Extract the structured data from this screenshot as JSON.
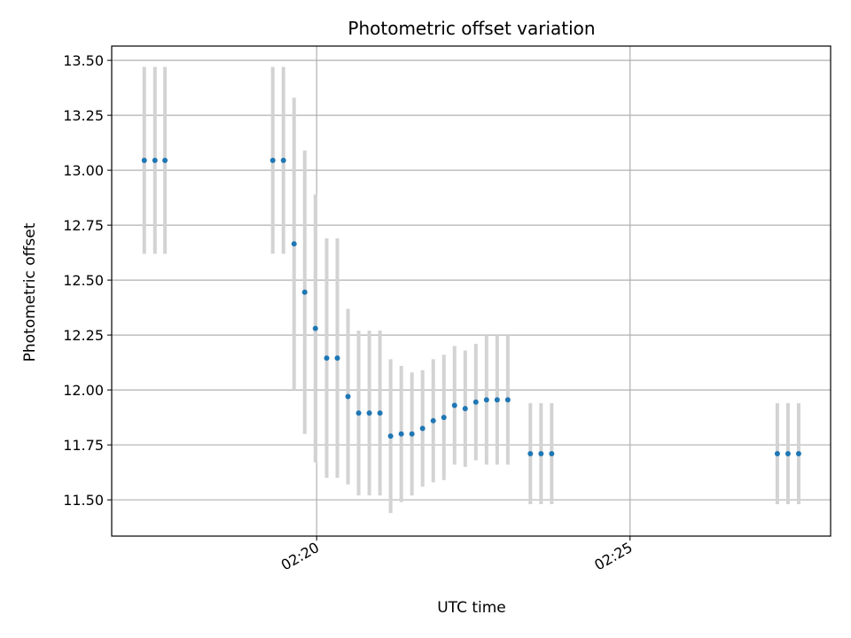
{
  "chart_data": {
    "type": "scatter",
    "title": "Photometric offset variation",
    "xlabel": "UTC time",
    "ylabel": "Photometric offset",
    "x_unit": "minutes after 02:00 UTC",
    "xlim": [
      16.73,
      28.2
    ],
    "ylim": [
      11.335,
      13.565
    ],
    "grid": true,
    "legend": "none",
    "point_color": "#1f77b4",
    "errorbar_color": "#d3d3d3",
    "x_ticks": [
      {
        "value": 20,
        "label": "02:20"
      },
      {
        "value": 25,
        "label": "02:25"
      }
    ],
    "y_ticks": [
      {
        "value": 11.5,
        "label": "11.50"
      },
      {
        "value": 11.75,
        "label": "11.75"
      },
      {
        "value": 12.0,
        "label": "12.00"
      },
      {
        "value": 12.25,
        "label": "12.25"
      },
      {
        "value": 12.5,
        "label": "12.50"
      },
      {
        "value": 12.75,
        "label": "12.75"
      },
      {
        "value": 13.0,
        "label": "13.00"
      },
      {
        "value": 13.25,
        "label": "13.25"
      },
      {
        "value": 13.5,
        "label": "13.50"
      }
    ],
    "points": [
      {
        "x": 17.25,
        "y": 13.045,
        "err_low": 12.62,
        "err_high": 13.47
      },
      {
        "x": 17.42,
        "y": 13.045,
        "err_low": 12.62,
        "err_high": 13.47
      },
      {
        "x": 17.58,
        "y": 13.045,
        "err_low": 12.62,
        "err_high": 13.47
      },
      {
        "x": 19.3,
        "y": 13.045,
        "err_low": 12.62,
        "err_high": 13.47
      },
      {
        "x": 19.47,
        "y": 13.045,
        "err_low": 12.62,
        "err_high": 13.47
      },
      {
        "x": 19.64,
        "y": 12.665,
        "err_low": 12.0,
        "err_high": 13.33
      },
      {
        "x": 19.81,
        "y": 12.445,
        "err_low": 11.8,
        "err_high": 13.09
      },
      {
        "x": 19.98,
        "y": 12.28,
        "err_low": 11.67,
        "err_high": 12.89
      },
      {
        "x": 20.16,
        "y": 12.145,
        "err_low": 11.6,
        "err_high": 12.69
      },
      {
        "x": 20.33,
        "y": 12.145,
        "err_low": 11.6,
        "err_high": 12.69
      },
      {
        "x": 20.5,
        "y": 11.97,
        "err_low": 11.57,
        "err_high": 12.37
      },
      {
        "x": 20.67,
        "y": 11.895,
        "err_low": 11.52,
        "err_high": 12.27
      },
      {
        "x": 20.84,
        "y": 11.895,
        "err_low": 11.52,
        "err_high": 12.27
      },
      {
        "x": 21.01,
        "y": 11.895,
        "err_low": 11.52,
        "err_high": 12.27
      },
      {
        "x": 21.18,
        "y": 11.79,
        "err_low": 11.44,
        "err_high": 12.14
      },
      {
        "x": 21.35,
        "y": 11.8,
        "err_low": 11.49,
        "err_high": 12.11
      },
      {
        "x": 21.52,
        "y": 11.8,
        "err_low": 11.52,
        "err_high": 12.08
      },
      {
        "x": 21.69,
        "y": 11.825,
        "err_low": 11.56,
        "err_high": 12.09
      },
      {
        "x": 21.86,
        "y": 11.86,
        "err_low": 11.58,
        "err_high": 12.14
      },
      {
        "x": 22.03,
        "y": 11.875,
        "err_low": 11.59,
        "err_high": 12.16
      },
      {
        "x": 22.2,
        "y": 11.93,
        "err_low": 11.66,
        "err_high": 12.2
      },
      {
        "x": 22.37,
        "y": 11.915,
        "err_low": 11.65,
        "err_high": 12.18
      },
      {
        "x": 22.54,
        "y": 11.945,
        "err_low": 11.68,
        "err_high": 12.21
      },
      {
        "x": 22.71,
        "y": 11.955,
        "err_low": 11.66,
        "err_high": 12.25
      },
      {
        "x": 22.88,
        "y": 11.955,
        "err_low": 11.66,
        "err_high": 12.25
      },
      {
        "x": 23.05,
        "y": 11.955,
        "err_low": 11.66,
        "err_high": 12.25
      },
      {
        "x": 23.41,
        "y": 11.71,
        "err_low": 11.48,
        "err_high": 11.94
      },
      {
        "x": 23.58,
        "y": 11.71,
        "err_low": 11.48,
        "err_high": 11.94
      },
      {
        "x": 23.75,
        "y": 11.71,
        "err_low": 11.48,
        "err_high": 11.94
      },
      {
        "x": 27.35,
        "y": 11.71,
        "err_low": 11.48,
        "err_high": 11.94
      },
      {
        "x": 27.52,
        "y": 11.71,
        "err_low": 11.48,
        "err_high": 11.94
      },
      {
        "x": 27.69,
        "y": 11.71,
        "err_low": 11.48,
        "err_high": 11.94
      }
    ]
  }
}
